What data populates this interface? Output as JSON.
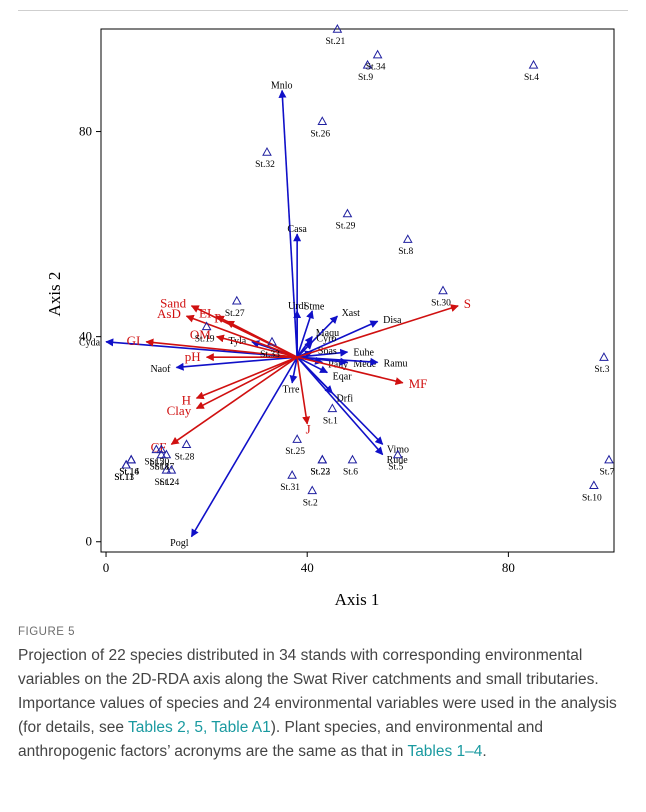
{
  "chart_data": {
    "type": "scatter",
    "xlabel": "Axis 1",
    "ylabel": "Axis 2",
    "xlim": [
      -1,
      101
    ],
    "ylim": [
      -2,
      100
    ],
    "xticks": [
      0,
      40,
      80
    ],
    "yticks": [
      0,
      40,
      80
    ],
    "origin": [
      38,
      36
    ],
    "stands": [
      {
        "label": "St.1",
        "x": 45,
        "y": 26
      },
      {
        "label": "St.2",
        "x": 41,
        "y": 10
      },
      {
        "label": "St.3",
        "x": 99,
        "y": 36
      },
      {
        "label": "St.4",
        "x": 85,
        "y": 93
      },
      {
        "label": "St.5",
        "x": 58,
        "y": 17
      },
      {
        "label": "St.6",
        "x": 49,
        "y": 16
      },
      {
        "label": "St.7",
        "x": 100,
        "y": 16
      },
      {
        "label": "St.8",
        "x": 60,
        "y": 59
      },
      {
        "label": "St.9",
        "x": 52,
        "y": 93
      },
      {
        "label": "St.10",
        "x": 97,
        "y": 11
      },
      {
        "label": "St.11",
        "x": 4,
        "y": 15
      },
      {
        "label": "St.12",
        "x": 12,
        "y": 14
      },
      {
        "label": "St.13",
        "x": 4,
        "y": 15
      },
      {
        "label": "St.14",
        "x": 5,
        "y": 16
      },
      {
        "label": "St.15",
        "x": 10,
        "y": 18
      },
      {
        "label": "St.16",
        "x": 5,
        "y": 16
      },
      {
        "label": "St.17",
        "x": 12,
        "y": 17
      },
      {
        "label": "St.18",
        "x": 11,
        "y": 17
      },
      {
        "label": "St.19",
        "x": 20,
        "y": 42
      },
      {
        "label": "St.20",
        "x": 11,
        "y": 18
      },
      {
        "label": "St.21",
        "x": 46,
        "y": 100
      },
      {
        "label": "St.22",
        "x": 43,
        "y": 16
      },
      {
        "label": "St.23",
        "x": 43,
        "y": 16
      },
      {
        "label": "St.24",
        "x": 13,
        "y": 14
      },
      {
        "label": "St.25",
        "x": 38,
        "y": 20
      },
      {
        "label": "St.26",
        "x": 43,
        "y": 82
      },
      {
        "label": "St.27",
        "x": 26,
        "y": 47
      },
      {
        "label": "St.28",
        "x": 16,
        "y": 19
      },
      {
        "label": "St.29",
        "x": 48,
        "y": 64
      },
      {
        "label": "St.30",
        "x": 67,
        "y": 49
      },
      {
        "label": "St.31",
        "x": 37,
        "y": 13
      },
      {
        "label": "St.32",
        "x": 32,
        "y": 76
      },
      {
        "label": "St.33",
        "x": 33,
        "y": 39
      },
      {
        "label": "St.34",
        "x": 54,
        "y": 95
      }
    ],
    "species": [
      {
        "label": "Mnlo",
        "x": 35,
        "y": 88
      },
      {
        "label": "Casa",
        "x": 38,
        "y": 60
      },
      {
        "label": "Cyda",
        "x": 0,
        "y": 39
      },
      {
        "label": "Naof",
        "x": 14,
        "y": 34
      },
      {
        "label": "Pogl",
        "x": 17,
        "y": 1
      },
      {
        "label": "Disa",
        "x": 54,
        "y": 43
      },
      {
        "label": "Vimo",
        "x": 55,
        "y": 19
      },
      {
        "label": "Rude",
        "x": 55,
        "y": 17
      },
      {
        "label": "Urdi",
        "x": 38,
        "y": 45
      },
      {
        "label": "Stme",
        "x": 41,
        "y": 45
      },
      {
        "label": "Maqu",
        "x": 41,
        "y": 40
      },
      {
        "label": "Xast",
        "x": 46,
        "y": 44
      },
      {
        "label": "Tyla",
        "x": 29,
        "y": 39
      },
      {
        "label": "Cyro",
        "x": 41,
        "y": 39
      },
      {
        "label": "Euhe",
        "x": 48,
        "y": 37
      },
      {
        "label": "Soas",
        "x": 41,
        "y": 37
      },
      {
        "label": "Pahy",
        "x": 43,
        "y": 35
      },
      {
        "label": "Mede",
        "x": 48,
        "y": 35
      },
      {
        "label": "Ramu",
        "x": 54,
        "y": 35
      },
      {
        "label": "Eqar",
        "x": 44,
        "y": 33
      },
      {
        "label": "Drfi",
        "x": 45,
        "y": 29
      },
      {
        "label": "Trre",
        "x": 37,
        "y": 31
      }
    ],
    "environment": [
      {
        "label": "Sand",
        "x": 17,
        "y": 46
      },
      {
        "label": "EI",
        "x": 22,
        "y": 44
      },
      {
        "label": "AsD",
        "x": 16,
        "y": 44
      },
      {
        "label": "P",
        "x": 24,
        "y": 43
      },
      {
        "label": "GI",
        "x": 8,
        "y": 39
      },
      {
        "label": "OM",
        "x": 22,
        "y": 40
      },
      {
        "label": "pH",
        "x": 20,
        "y": 36
      },
      {
        "label": "H",
        "x": 18,
        "y": 28
      },
      {
        "label": "Clay",
        "x": 18,
        "y": 26
      },
      {
        "label": "CF",
        "x": 13,
        "y": 19
      },
      {
        "label": "J",
        "x": 40,
        "y": 23
      },
      {
        "label": "MF",
        "x": 59,
        "y": 31
      },
      {
        "label": "S",
        "x": 70,
        "y": 46
      }
    ]
  },
  "figure_label": "FIGURE 5",
  "caption": {
    "text1": "Projection of 22 species distributed in 34 stands with corresponding environmental variables on the 2D-RDA axis along the Swat River catchments and small tributaries. Importance values of species and 24 environmental variables were used in the analysis (for details, see ",
    "ref1": "Tables 2, 5, Table A1",
    "text2": "). Plant species, and environmental and anthropogenic factors’ acronyms are the same as that in ",
    "ref2": "Tables 1–4",
    "text3": "."
  },
  "colors": {
    "species_arrow": "#1010c8",
    "env_arrow": "#d01010",
    "stand_marker": "#2020a0",
    "axis": "#000000",
    "caption_ref": "#1a9aa0"
  }
}
